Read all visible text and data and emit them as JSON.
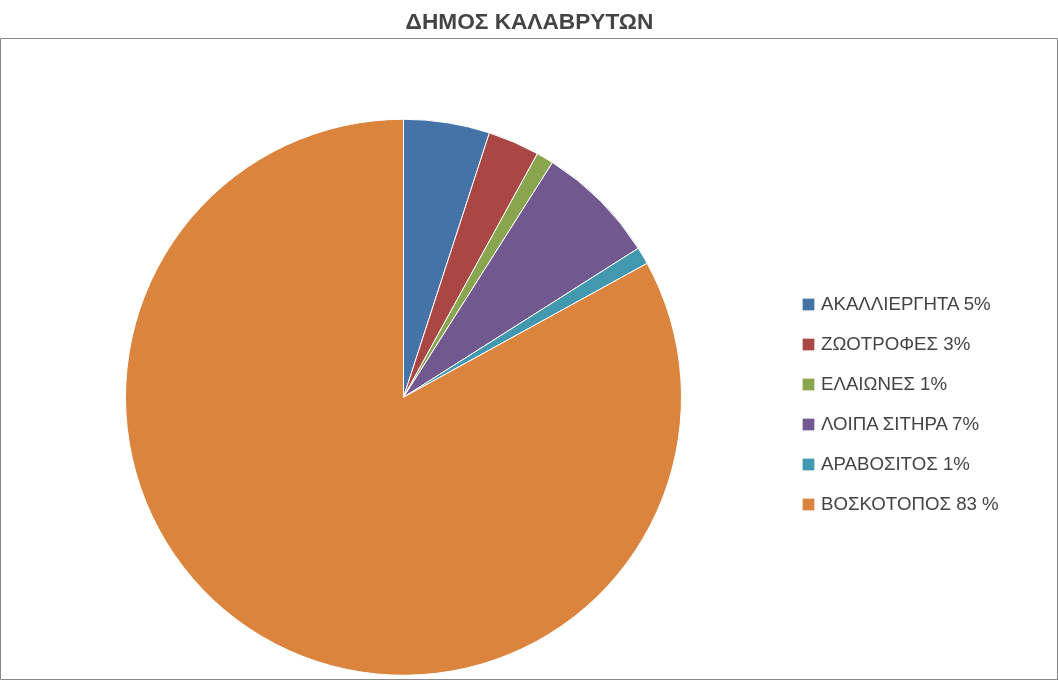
{
  "chart_data": {
    "type": "pie",
    "title": "ΔΗΜΟΣ ΚΑΛΑΒΡΥΤΩΝ",
    "categories": [
      "ΑΚΑΛΛΙΕΡΓΗΤΑ 5%",
      "ΖΩΟΤΡΟΦΕΣ 3%",
      "ΕΛΑΙΩΝΕΣ 1%",
      "ΛΟΙΠΑ ΣΙΤΗΡΑ 7%",
      "ΑΡΑΒΟΣΙΤΟΣ 1%",
      "ΒΟΣΚΟΤΟΠΟΣ 83 %"
    ],
    "values": [
      5,
      3,
      1,
      7,
      1,
      83
    ],
    "colors": [
      "#4572a7",
      "#aa4643",
      "#89a54e",
      "#71588f",
      "#4198af",
      "#db843d"
    ],
    "legend": "right"
  }
}
